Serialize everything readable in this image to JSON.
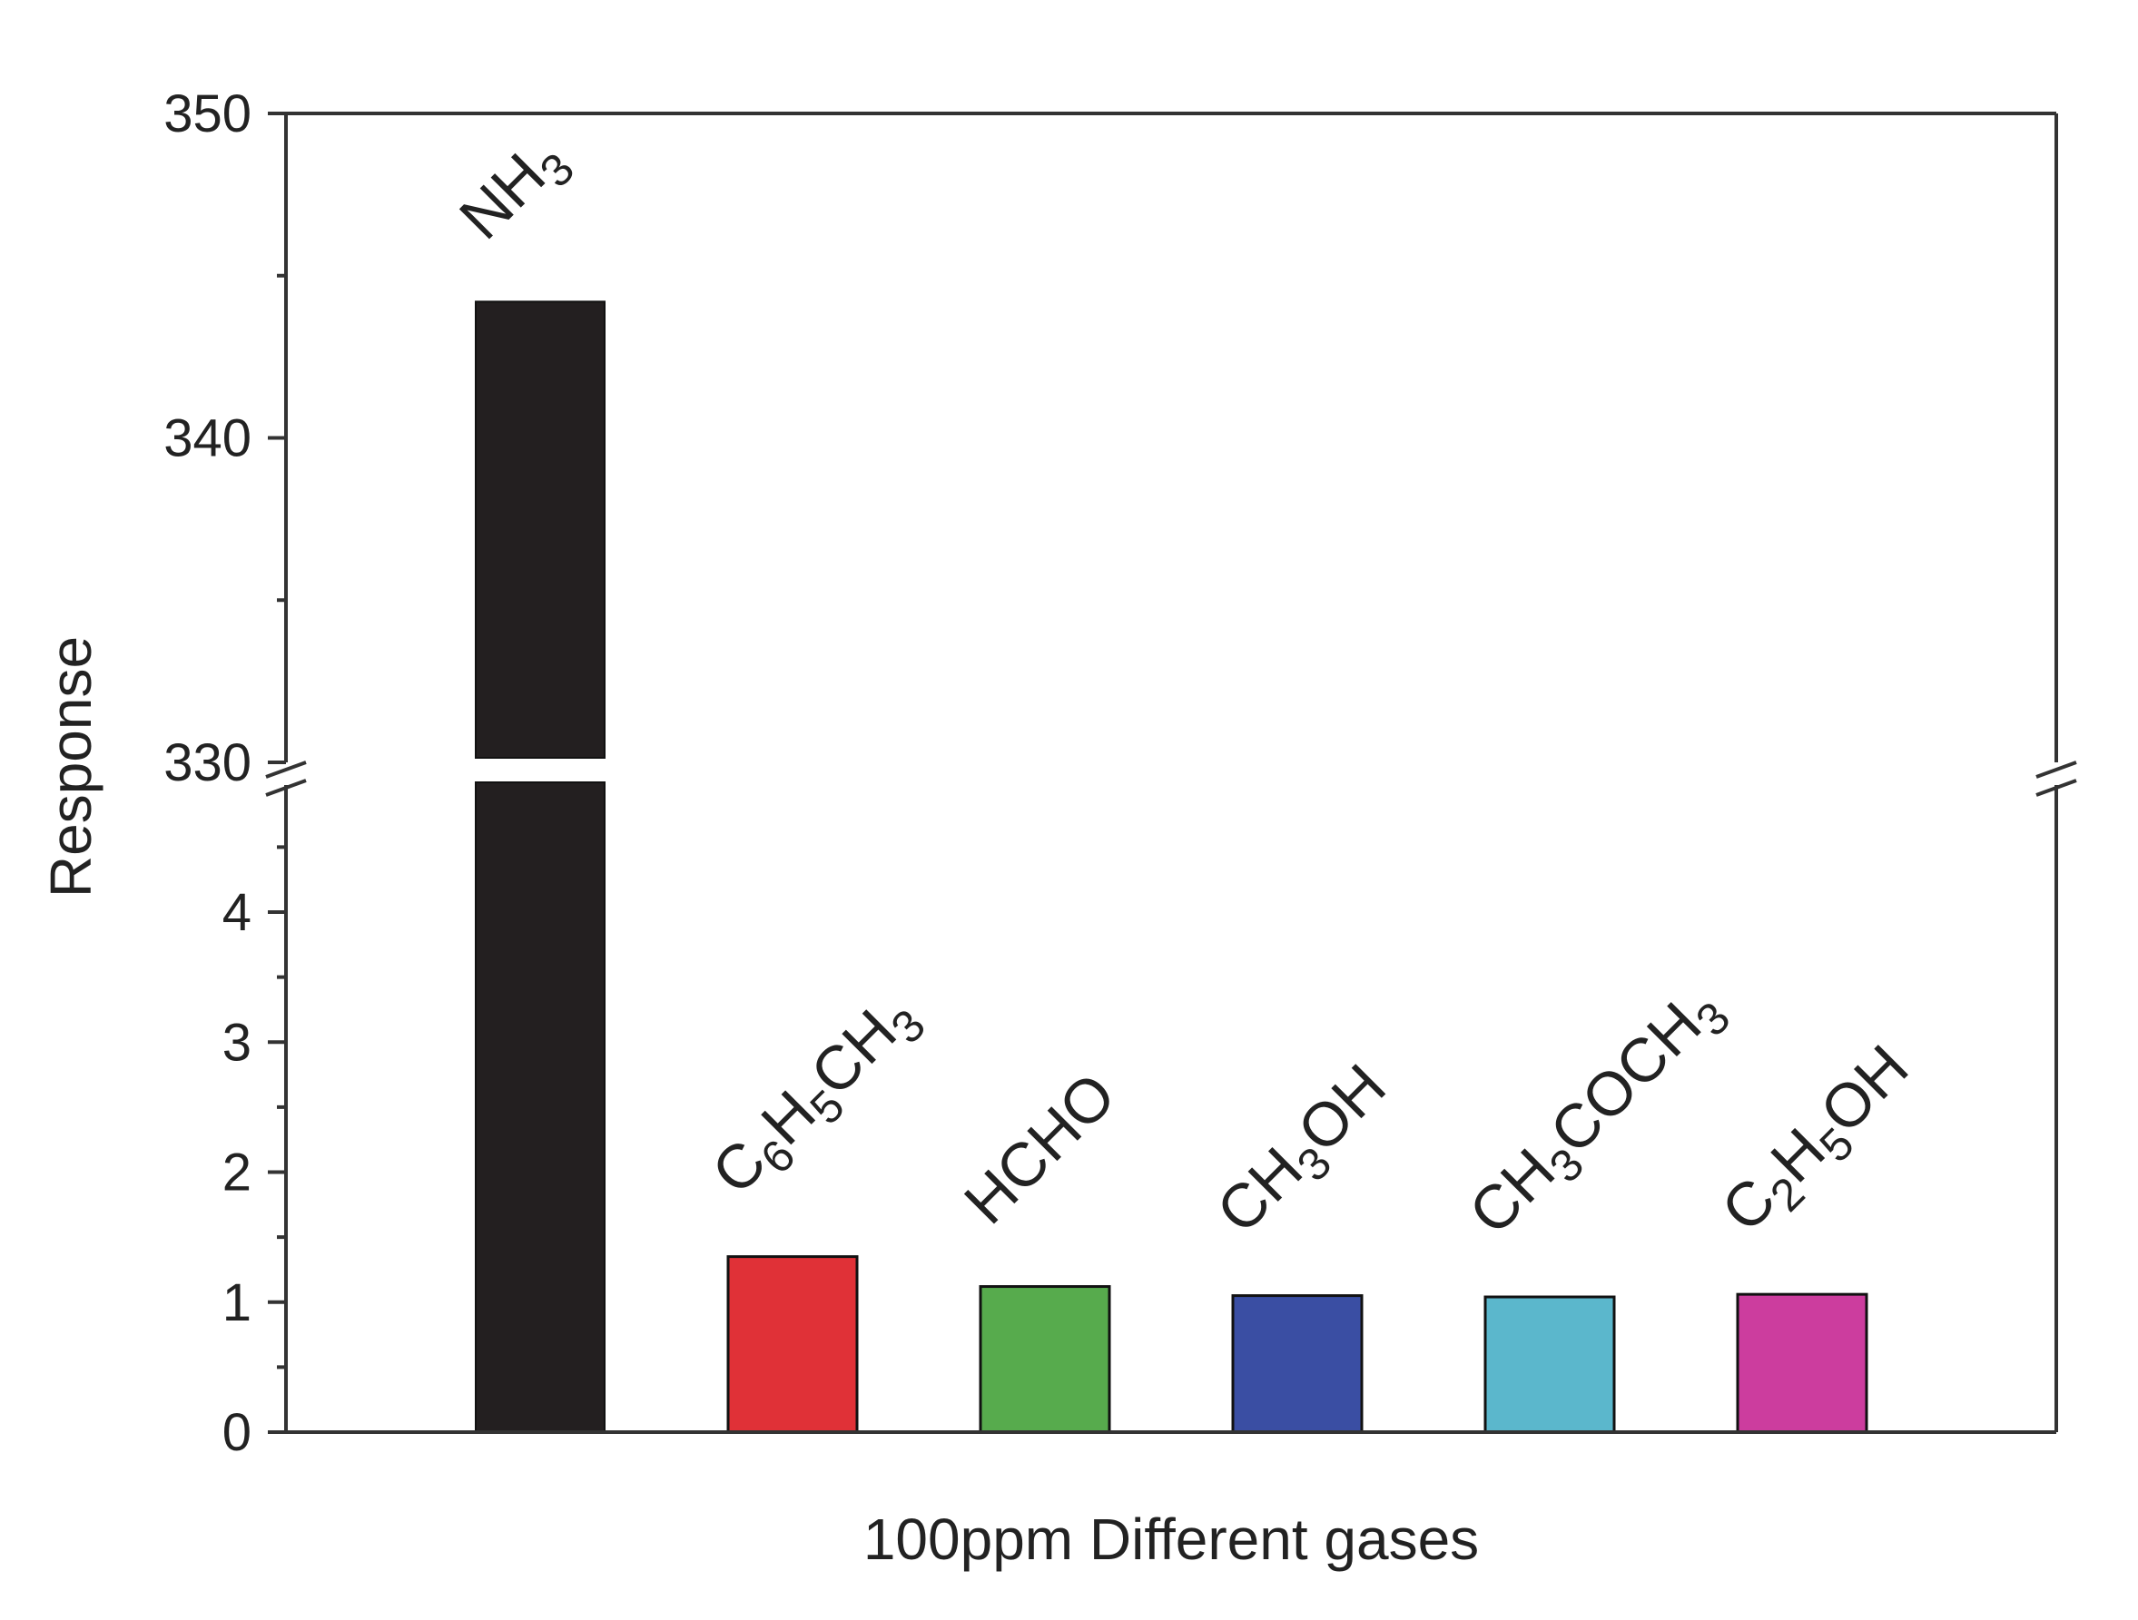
{
  "chart_data": {
    "type": "bar",
    "xlabel": "100ppm Different gases",
    "ylabel": "Response",
    "categories": [
      {
        "text": "NH3",
        "parts": [
          [
            "NH",
            false
          ],
          [
            "3",
            true
          ]
        ]
      },
      {
        "text": "C6H5CH3",
        "parts": [
          [
            "C",
            false
          ],
          [
            "6",
            true
          ],
          [
            "H",
            false
          ],
          [
            "5",
            true
          ],
          [
            "CH",
            false
          ],
          [
            "3",
            true
          ]
        ]
      },
      {
        "text": "HCHO",
        "parts": [
          [
            "HCHO",
            false
          ]
        ]
      },
      {
        "text": "CH3OH",
        "parts": [
          [
            "CH",
            false
          ],
          [
            "3",
            true
          ],
          [
            "OH",
            false
          ]
        ]
      },
      {
        "text": "CH3COCH3",
        "parts": [
          [
            "CH",
            false
          ],
          [
            "3",
            true
          ],
          [
            "COCH",
            false
          ],
          [
            "3",
            true
          ]
        ]
      },
      {
        "text": "C2H5OH",
        "parts": [
          [
            "C",
            false
          ],
          [
            "2",
            true
          ],
          [
            "H",
            false
          ],
          [
            "5",
            true
          ],
          [
            "OH",
            false
          ]
        ]
      }
    ],
    "values": [
      344.2,
      1.35,
      1.12,
      1.05,
      1.04,
      1.06
    ],
    "colors": [
      "#231f20",
      "#e03137",
      "#57ab4d",
      "#3a4ea3",
      "#5bb7cc",
      "#cc3d9e"
    ],
    "y_axis_break": {
      "lower_range": [
        0,
        5
      ],
      "upper_range": [
        330,
        350
      ]
    },
    "yticks_lower": [
      0,
      1,
      2,
      3,
      4
    ],
    "yticks_upper": [
      330,
      340,
      350
    ],
    "grid": false,
    "legend": "none"
  }
}
